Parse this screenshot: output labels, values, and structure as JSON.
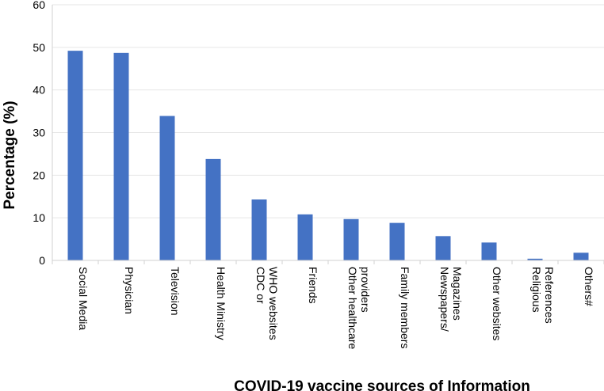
{
  "chart_data": {
    "type": "bar",
    "title": "",
    "xlabel": "COVID-19 vaccine sources of Information",
    "ylabel": "Percentage (%)",
    "ylim": [
      0,
      60
    ],
    "yticks": [
      0,
      10,
      20,
      30,
      40,
      50,
      60
    ],
    "grid": true,
    "bar_color": "#4472c4",
    "categories": [
      [
        "Social Media"
      ],
      [
        "Physician"
      ],
      [
        "Television"
      ],
      [
        "Health Ministry"
      ],
      [
        "CDC or",
        "WHO websites"
      ],
      [
        "Friends"
      ],
      [
        "Other healthcare",
        "providers"
      ],
      [
        "Family members"
      ],
      [
        "Newspapers/",
        "Magazines"
      ],
      [
        "Other websites"
      ],
      [
        "Religious",
        "References"
      ],
      [
        "Others#"
      ]
    ],
    "values": [
      49.2,
      48.7,
      33.9,
      23.8,
      14.3,
      10.8,
      9.7,
      8.8,
      5.7,
      4.2,
      0.4,
      1.8
    ]
  }
}
